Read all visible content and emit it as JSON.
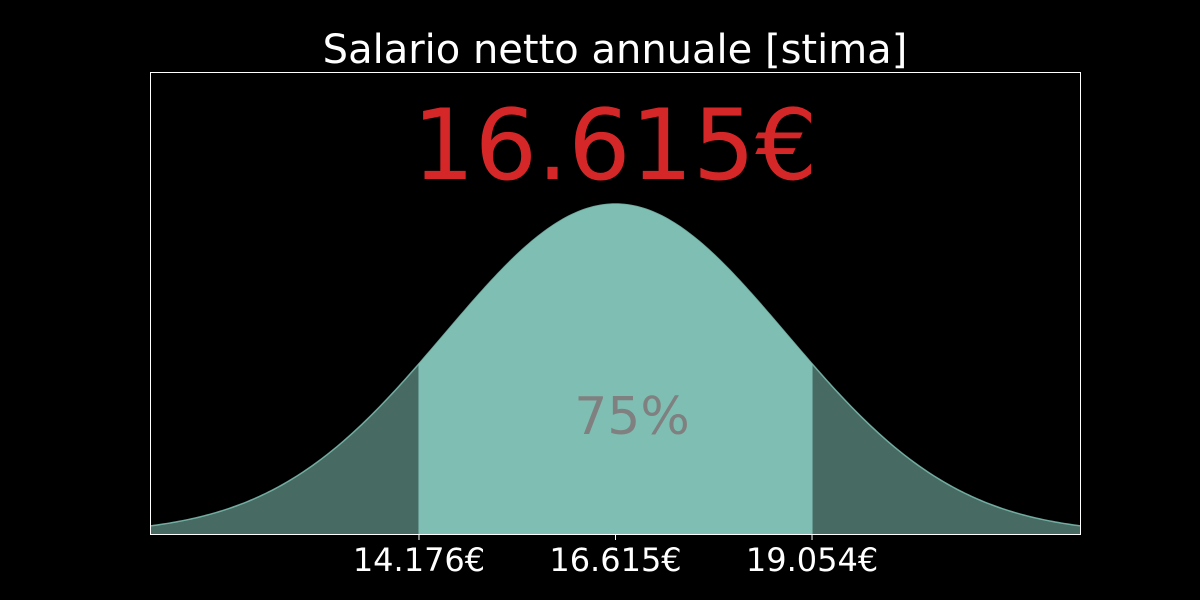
{
  "chart_data": {
    "type": "area",
    "title": "Salario netto annuale [stima]",
    "headline_value": "16.615€",
    "interval_label": "75%",
    "mean": 16615,
    "lower": 14176,
    "upper": 19054,
    "xlim": [
      10850,
      22380
    ],
    "tick_values": [
      14176,
      16615,
      19054
    ],
    "tick_labels": [
      "14.176€",
      "16.615€",
      "19.054€"
    ],
    "grid": false,
    "colors": {
      "background": "#000000",
      "frame": "#ffffff",
      "title": "#ffffff",
      "headline": "#d62728",
      "interval_fill": "#7fbfb3",
      "tail_fill": "#476a63",
      "curve": "#7fbfb3",
      "interval_label": "#808080",
      "ticks": "#ffffff"
    }
  }
}
